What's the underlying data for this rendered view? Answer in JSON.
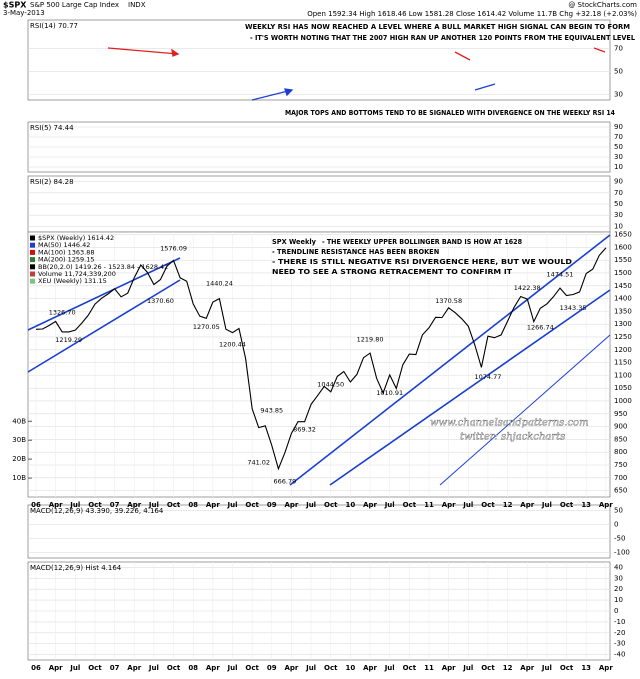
{
  "header": {
    "symbol": "$SPX",
    "name": "S&P 500 Large Cap Index",
    "exchange": "INDX",
    "date": "3-May-2013",
    "watermark": "@ StockCharts.com",
    "quote": "Open 1592.34  High 1618.46  Low 1581.28  Close 1614.42  Volume 11.7B  Chg +32.18 (+2.03%)"
  },
  "chart_data": [
    {
      "type": "line",
      "label": "RSI(14) 70.77",
      "ylim": [
        25,
        95
      ],
      "yticks": [
        70,
        50,
        30
      ],
      "annotations": [
        "WEEKLY RSI HAS NOW REACHED A LEVEL WHERE A BULL MARKET HIGH SIGNAL CAN BEGIN TO FORM",
        "- IT'S WORTH NOTING THAT THE 2007 HIGH RAN UP ANOTHER 120 POINTS FROM THE EQUIVALENT LEVEL",
        "MAJOR TOPS AND BOTTOMS TEND TO BE SIGNALED WITH DIVERGENCE ON THE WEEKLY RSI 14"
      ]
    },
    {
      "type": "line",
      "label": "RSI(5) 74.44",
      "ylim": [
        0,
        100
      ],
      "yticks": [
        90,
        70,
        50,
        30,
        10
      ]
    },
    {
      "type": "line",
      "label": "RSI(2) 84.28",
      "ylim": [
        0,
        100
      ],
      "yticks": [
        90,
        70,
        50,
        30,
        10
      ]
    },
    {
      "type": "line",
      "title": "SPX Weekly",
      "ylim": [
        625,
        1660
      ],
      "yticks": [
        1650,
        1600,
        1550,
        1500,
        1450,
        1400,
        1350,
        1300,
        1250,
        1200,
        1150,
        1100,
        1050,
        1000,
        950,
        900,
        850,
        800,
        750,
        700,
        650
      ],
      "vol_ylim": [
        0,
        140000000000
      ],
      "vol_ticks": [
        {
          "value": 40000000000,
          "label": "40B"
        },
        {
          "value": 30000000000,
          "label": "30B"
        },
        {
          "value": 20000000000,
          "label": "20B"
        },
        {
          "value": 10000000000,
          "label": "10B"
        }
      ],
      "legend": [
        {
          "name": "$SPX (Weekly) 1614.42",
          "color": "#000000"
        },
        {
          "name": "MA(50) 1446.42",
          "color": "#1f3fd0"
        },
        {
          "name": "MA(100) 1363.88",
          "color": "#d01010"
        },
        {
          "name": "MA(200) 1259.15",
          "color": "#2e7d32"
        },
        {
          "name": "BB(20,2.0) 1419.26 - 1523.84 - 1628.42",
          "color": "#000000"
        },
        {
          "name": "Volume 11,724,339,200",
          "color": "#c04040"
        },
        {
          "name": "XEU (Weekly) 131.15",
          "color": "#7cc47c"
        }
      ],
      "annotations": [
        "- THE WEEKLY UPPER BOLLINGER BAND IS HOW AT 1628",
        "- TRENDLINE RESISTANCE HAS BEEN BROKEN",
        "- THERE IS STILL NEGATIVE RSI DIVERGENCE HERE, BUT WE WOULD",
        "NEED TO SEE A STRONG RETRACEMENT TO CONFIRM IT",
        "www.channelsandpatterns.com",
        "twitter: shjackcharts"
      ],
      "x": [
        "2006-01",
        "2006-02",
        "2006-03",
        "2006-04",
        "2006-05",
        "2006-06",
        "2006-07",
        "2006-08",
        "2006-09",
        "2006-10",
        "2006-11",
        "2006-12",
        "2007-01",
        "2007-02",
        "2007-03",
        "2007-04",
        "2007-05",
        "2007-06",
        "2007-07",
        "2007-08",
        "2007-09",
        "2007-10",
        "2007-11",
        "2007-12",
        "2008-01",
        "2008-02",
        "2008-03",
        "2008-04",
        "2008-05",
        "2008-06",
        "2008-07",
        "2008-08",
        "2008-09",
        "2008-10",
        "2008-11",
        "2008-12",
        "2009-01",
        "2009-02",
        "2009-03",
        "2009-04",
        "2009-05",
        "2009-06",
        "2009-07",
        "2009-08",
        "2009-09",
        "2009-10",
        "2009-11",
        "2009-12",
        "2010-01",
        "2010-02",
        "2010-03",
        "2010-04",
        "2010-05",
        "2010-06",
        "2010-07",
        "2010-08",
        "2010-09",
        "2010-10",
        "2010-11",
        "2010-12",
        "2011-01",
        "2011-02",
        "2011-03",
        "2011-04",
        "2011-05",
        "2011-06",
        "2011-07",
        "2011-08",
        "2011-09",
        "2011-10",
        "2011-11",
        "2011-12",
        "2012-01",
        "2012-02",
        "2012-03",
        "2012-04",
        "2012-05",
        "2012-06",
        "2012-07",
        "2012-08",
        "2012-09",
        "2012-10",
        "2012-11",
        "2012-12",
        "2013-01",
        "2013-02",
        "2013-03",
        "2013-04"
      ],
      "series": [
        {
          "name": "$SPX (Weekly) 1614.42",
          "color": "#000000",
          "values": [
            1280,
            1281,
            1295,
            1311,
            1270,
            1270,
            1277,
            1304,
            1336,
            1378,
            1401,
            1418,
            1438,
            1407,
            1421,
            1482,
            1531,
            1503,
            1455,
            1474,
            1527,
            1549,
            1481,
            1468,
            1379,
            1331,
            1323,
            1386,
            1400,
            1280,
            1267,
            1283,
            1166,
            969,
            896,
            903,
            826,
            735,
            798,
            873,
            919,
            919,
            987,
            1021,
            1057,
            1036,
            1096,
            1115,
            1074,
            1104,
            1169,
            1187,
            1089,
            1031,
            1102,
            1049,
            1141,
            1183,
            1181,
            1258,
            1286,
            1327,
            1326,
            1364,
            1345,
            1321,
            1292,
            1219,
            1131,
            1253,
            1247,
            1258,
            1312,
            1366,
            1408,
            1398,
            1310,
            1362,
            1379,
            1407,
            1441,
            1412,
            1416,
            1426,
            1498,
            1515,
            1569,
            1598
          ]
        }
      ],
      "price_labels": [
        {
          "x": "2006-05",
          "value": 1326.7,
          "label": "1326.70"
        },
        {
          "x": "2006-06",
          "value": 1219.29,
          "label": "1219.29"
        },
        {
          "x": "2007-10",
          "value": 1576.09,
          "label": "1576.09"
        },
        {
          "x": "2007-08",
          "value": 1370.6,
          "label": "1370.60"
        },
        {
          "x": "2008-05",
          "value": 1440.24,
          "label": "1440.24"
        },
        {
          "x": "2008-03",
          "value": 1270.05,
          "label": "1270.05"
        },
        {
          "x": "2008-07",
          "value": 1200.44,
          "label": "1200.44"
        },
        {
          "x": "2008-11",
          "value": 741.02,
          "label": "741.02"
        },
        {
          "x": "2009-03",
          "value": 666.79,
          "label": "666.79"
        },
        {
          "x": "2009-06",
          "value": 869.32,
          "label": "869.32"
        },
        {
          "x": "2009-01",
          "value": 943.85,
          "label": "943.85"
        },
        {
          "x": "2009-10",
          "value": 1044.5,
          "label": "1044.50"
        },
        {
          "x": "2010-07",
          "value": 1010.91,
          "label": "1010.91"
        },
        {
          "x": "2010-04",
          "value": 1219.8,
          "label": "1219.80"
        },
        {
          "x": "2011-04",
          "value": 1370.58,
          "label": "1370.58"
        },
        {
          "x": "2011-10",
          "value": 1074.77,
          "label": "1074.77"
        },
        {
          "x": "2012-04",
          "value": 1422.38,
          "label": "1422.38"
        },
        {
          "x": "2012-06",
          "value": 1266.74,
          "label": "1266.74"
        },
        {
          "x": "2012-09",
          "value": 1474.51,
          "label": "1474.51"
        },
        {
          "x": "2012-11",
          "value": 1343.35,
          "label": "1343.35"
        }
      ],
      "xticks": [
        {
          "value": "2006-01",
          "label": "06"
        },
        {
          "value": "2006-04",
          "label": "Apr"
        },
        {
          "value": "2006-07",
          "label": "Jul"
        },
        {
          "value": "2006-10",
          "label": "Oct"
        },
        {
          "value": "2007-01",
          "label": "07"
        },
        {
          "value": "2007-04",
          "label": "Apr"
        },
        {
          "value": "2007-07",
          "label": "Jul"
        },
        {
          "value": "2007-10",
          "label": "Oct"
        },
        {
          "value": "2008-01",
          "label": "08"
        },
        {
          "value": "2008-04",
          "label": "Apr"
        },
        {
          "value": "2008-07",
          "label": "Jul"
        },
        {
          "value": "2008-10",
          "label": "Oct"
        },
        {
          "value": "2009-01",
          "label": "09"
        },
        {
          "value": "2009-04",
          "label": "Apr"
        },
        {
          "value": "2009-07",
          "label": "Jul"
        },
        {
          "value": "2009-10",
          "label": "Oct"
        },
        {
          "value": "2010-01",
          "label": "10"
        },
        {
          "value": "2010-04",
          "label": "Apr"
        },
        {
          "value": "2010-07",
          "label": "Jul"
        },
        {
          "value": "2010-10",
          "label": "Oct"
        },
        {
          "value": "2011-01",
          "label": "11"
        },
        {
          "value": "2011-04",
          "label": "Apr"
        },
        {
          "value": "2011-07",
          "label": "Jul"
        },
        {
          "value": "2011-10",
          "label": "Oct"
        },
        {
          "value": "2012-01",
          "label": "12"
        },
        {
          "value": "2012-04",
          "label": "Apr"
        },
        {
          "value": "2012-07",
          "label": "Jul"
        },
        {
          "value": "2012-10",
          "label": "Oct"
        },
        {
          "value": "2013-01",
          "label": "13"
        },
        {
          "value": "2013-04",
          "label": "Apr"
        }
      ]
    },
    {
      "type": "line",
      "label": "MACD(12,26,9) 43.390, 39.226, 4.164",
      "ylim": [
        -120,
        70
      ],
      "yticks": [
        50,
        0,
        -50,
        -100
      ]
    },
    {
      "type": "bar",
      "label": "MACD(12,26,9) Hist 4.164",
      "ylim": [
        -45,
        45
      ],
      "yticks": [
        40,
        30,
        20,
        10,
        0,
        -10,
        -20,
        -30,
        -40
      ],
      "xticks": [
        {
          "value": "2006-01",
          "label": "06"
        },
        {
          "value": "2006-04",
          "label": "Apr"
        },
        {
          "value": "2006-07",
          "label": "Jul"
        },
        {
          "value": "2006-10",
          "label": "Oct"
        },
        {
          "value": "2007-01",
          "label": "07"
        },
        {
          "value": "2007-04",
          "label": "Apr"
        },
        {
          "value": "2007-07",
          "label": "Jul"
        },
        {
          "value": "2007-10",
          "label": "Oct"
        },
        {
          "value": "2008-01",
          "label": "08"
        },
        {
          "value": "2008-04",
          "label": "Apr"
        },
        {
          "value": "2008-07",
          "label": "Jul"
        },
        {
          "value": "2008-10",
          "label": "Oct"
        },
        {
          "value": "2009-01",
          "label": "09"
        },
        {
          "value": "2009-04",
          "label": "Apr"
        },
        {
          "value": "2009-07",
          "label": "Jul"
        },
        {
          "value": "2009-10",
          "label": "Oct"
        },
        {
          "value": "2010-01",
          "label": "10"
        },
        {
          "value": "2010-04",
          "label": "Apr"
        },
        {
          "value": "2010-07",
          "label": "Jul"
        },
        {
          "value": "2010-10",
          "label": "Oct"
        },
        {
          "value": "2011-01",
          "label": "11"
        },
        {
          "value": "2011-04",
          "label": "Apr"
        },
        {
          "value": "2011-07",
          "label": "Jul"
        },
        {
          "value": "2011-10",
          "label": "Oct"
        },
        {
          "value": "2012-01",
          "label": "12"
        },
        {
          "value": "2012-04",
          "label": "Apr"
        },
        {
          "value": "2012-07",
          "label": "Jul"
        },
        {
          "value": "2012-10",
          "label": "Oct"
        },
        {
          "value": "2013-01",
          "label": "13"
        },
        {
          "value": "2013-04",
          "label": "Apr"
        }
      ]
    }
  ]
}
